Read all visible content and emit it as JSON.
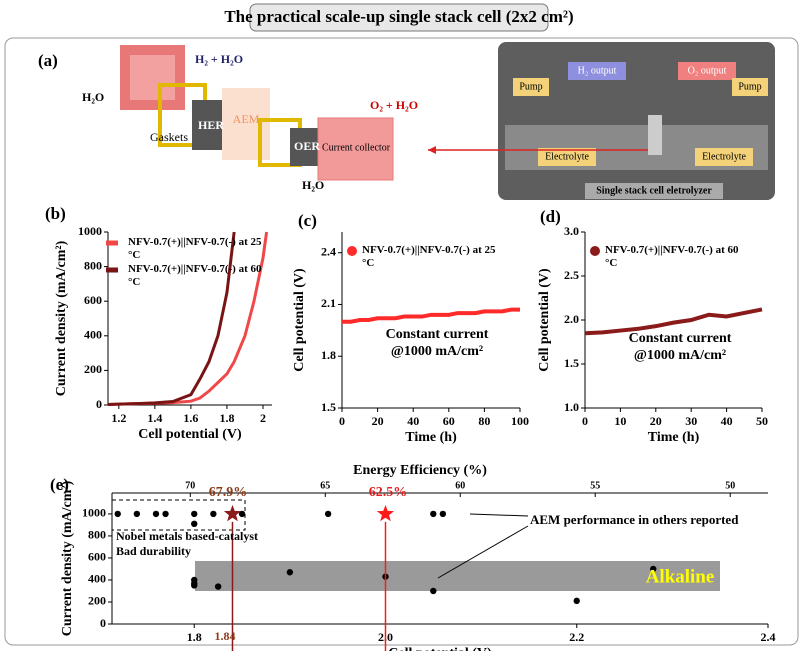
{
  "title": "The practical scale-up single stack cell (2x2 cm²)",
  "panel_a": {
    "label": "(a)",
    "h2_out": "H₂ + H₂O",
    "h2o_in": "H₂O",
    "gaskets": "Gaskets",
    "her": "HER",
    "aem": "AEM",
    "oer": "OER",
    "collector": "Current collector",
    "o2_out": "O₂ + H₂O",
    "h2o_in2": "H₂O",
    "photo": {
      "pump_left": "Pump",
      "h2_output": "H₂ output",
      "o2_output": "O₂ output",
      "pump_right": "Pump",
      "electrolyte_left": "Electrolyte",
      "electrolyte_right": "Electrolyte",
      "cell": "Single stack cell eletrolyzer"
    }
  },
  "chart_data": [
    {
      "type": "line",
      "panel_label": "(b)",
      "x_label": "Cell potential (V)",
      "y_label": "Current density (mA/cm²)",
      "x": [
        1.14,
        1.2,
        1.3,
        1.4,
        1.5,
        1.6,
        1.65,
        1.7,
        1.75,
        1.8,
        1.84,
        1.9,
        1.95,
        2.0,
        2.02
      ],
      "series": [
        {
          "name": "NFV-0.7(+)||NFV-0.7(-) at 25 °C",
          "color": "#f04848",
          "values": [
            3,
            5,
            8,
            10,
            14,
            22,
            40,
            80,
            130,
            180,
            250,
            400,
            600,
            850,
            1000
          ]
        },
        {
          "name": "NFV-0.7(+)||NFV-0.7(-) at 60 °C",
          "color": "#7a1414",
          "values": [
            3,
            5,
            8,
            12,
            20,
            60,
            150,
            250,
            400,
            650,
            1000,
            null,
            null,
            null,
            null
          ]
        }
      ],
      "xlim": [
        1.14,
        2.05
      ],
      "xticks": [
        1.2,
        1.4,
        1.6,
        1.8,
        2.0
      ],
      "ylim": [
        0,
        1000
      ],
      "yticks": [
        0,
        200,
        400,
        600,
        800,
        1000
      ],
      "legend": "upper left"
    },
    {
      "type": "line",
      "panel_label": "(c)",
      "x_label": "Time (h)",
      "y_label": "Cell potential (V)",
      "annotation": "Constant current @1000 mA/cm²",
      "x": [
        0,
        5,
        10,
        15,
        20,
        25,
        30,
        35,
        40,
        45,
        50,
        55,
        60,
        65,
        70,
        75,
        80,
        85,
        90,
        95,
        100
      ],
      "series": [
        {
          "name": "NFV-0.7(+)||NFV-0.7(-) at 25 °C",
          "color": "#ff2a2a",
          "values": [
            2.0,
            2.0,
            2.01,
            2.01,
            2.02,
            2.02,
            2.02,
            2.03,
            2.03,
            2.03,
            2.04,
            2.04,
            2.04,
            2.05,
            2.05,
            2.05,
            2.06,
            2.06,
            2.06,
            2.07,
            2.07
          ]
        }
      ],
      "xlim": [
        0,
        100
      ],
      "xticks": [
        0,
        20,
        40,
        60,
        80,
        100
      ],
      "ylim": [
        1.5,
        2.52
      ],
      "yticks": [
        1.5,
        1.8,
        2.1,
        2.4
      ],
      "legend": "upper left"
    },
    {
      "type": "line",
      "panel_label": "(d)",
      "x_label": "Time (h)",
      "y_label": "Cell potential (V)",
      "annotation": "Constant current @1000 mA/cm²",
      "x": [
        0,
        5,
        10,
        15,
        20,
        25,
        30,
        35,
        40,
        45,
        50
      ],
      "series": [
        {
          "name": "NFV-0.7(+)||NFV-0.7(-) at 60 °C",
          "color": "#8b1a1a",
          "values": [
            1.85,
            1.86,
            1.88,
            1.9,
            1.93,
            1.97,
            2.0,
            2.06,
            2.04,
            2.08,
            2.12
          ]
        }
      ],
      "xlim": [
        0,
        50
      ],
      "xticks": [
        0,
        10,
        20,
        30,
        40,
        50
      ],
      "ylim": [
        1.0,
        3.0
      ],
      "yticks": [
        {
          "value": 1,
          "label": "1.0"
        },
        1.5,
        {
          "value": 2,
          "label": "2.0"
        },
        2.5,
        {
          "value": 3,
          "label": "3.0"
        }
      ],
      "legend": "upper left"
    },
    {
      "type": "scatter",
      "panel_label": "(e)",
      "x_label": "Cell potential (V)",
      "y_label": "Current density (mA/cm²)",
      "x2_label": "Energy Efficiency (%)",
      "series": [
        {
          "color": "#000000",
          "marker": "circle",
          "x": [
            1.72,
            1.74,
            1.76,
            1.77,
            1.8,
            1.8,
            1.82,
            1.85,
            1.94,
            2.05,
            2.06,
            1.8,
            1.8,
            1.8,
            1.825,
            1.9,
            2.0,
            2.05,
            2.2,
            2.28
          ],
          "values": [
            1000,
            1000,
            1000,
            1000,
            1000,
            910,
            1000,
            1000,
            1000,
            1000,
            1000,
            400,
            370,
            350,
            340,
            470,
            430,
            300,
            210,
            500
          ]
        },
        {
          "color": "#8b1a1a",
          "marker": "star",
          "x": [
            1.84
          ],
          "values": [
            1000
          ]
        },
        {
          "color": "#ff1a1a",
          "marker": "star",
          "x": [
            2.0
          ],
          "values": [
            1000
          ]
        }
      ],
      "annotations": [
        "67.9%",
        "62.5%",
        "1.84",
        "Nobel metals based-catalyst",
        "Bad durability",
        "AEM performance in others reported",
        "Alkaline"
      ],
      "xlim": [
        1.714,
        2.4
      ],
      "xticks": [
        1.8,
        {
          "value": 2,
          "label": "2.0"
        },
        2.2,
        2.4
      ],
      "ylim": [
        0,
        1190
      ],
      "yticks": [
        0,
        200,
        400,
        600,
        800,
        1000
      ],
      "x2lim": [
        72.9,
        48.6
      ],
      "x2ticks": [
        70,
        65,
        60,
        55,
        50
      ]
    }
  ]
}
